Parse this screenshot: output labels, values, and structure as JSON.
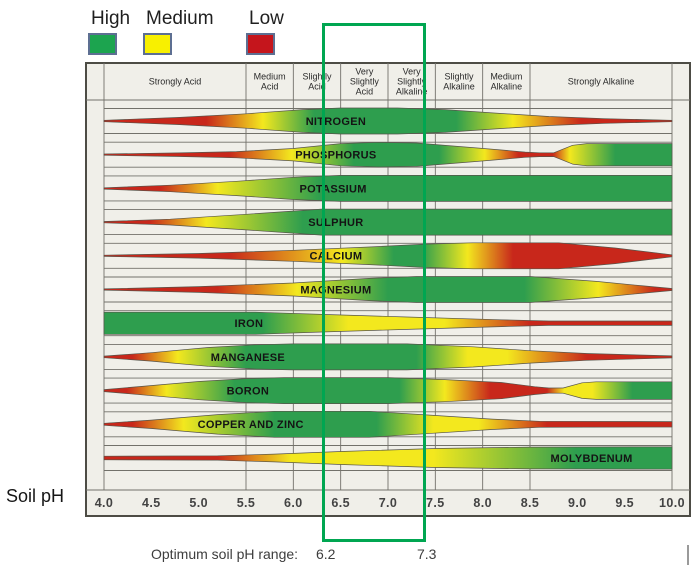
{
  "colors": {
    "red": "#c8271b",
    "yellow": "#f3e81e",
    "green": "#2e9e4e",
    "plot_bg": "#f0efe9",
    "grid": "#72716a",
    "box_border": "#4d4c45",
    "overlay_green": "#00a651",
    "band_outline": "#56544a",
    "label_ink": "#141414",
    "tick_ink": "#434343",
    "header_ink": "#2a2a2a"
  },
  "chart_data": {
    "type": "area",
    "title": "",
    "legend": {
      "items": [
        {
          "label": "High",
          "color": "#1ca44f",
          "color_key": "green"
        },
        {
          "label": "Medium",
          "color": "#f8f000",
          "color_key": "yellow"
        },
        {
          "label": "Low",
          "color": "#c5151c",
          "color_key": "red"
        }
      ]
    },
    "x_axis": {
      "label": "Soil pH",
      "min": 4.0,
      "max": 10.0,
      "tick_labels": [
        "4.0",
        "4.5",
        "5.0",
        "5.5",
        "6.0",
        "6.5",
        "7.0",
        "7.5",
        "8.0",
        "8.5",
        "9.0",
        "9.5",
        "10.0"
      ]
    },
    "optimum_range": {
      "label": "Optimum soil pH range:",
      "low_label": "6.2",
      "high_label": "7.3",
      "low": 6.2,
      "high": 7.3
    },
    "ph_categories": [
      {
        "label": "Strongly Acid",
        "lines": [
          "Strongly Acid"
        ],
        "from": 4.0,
        "to": 5.5
      },
      {
        "label": "Medium Acid",
        "lines": [
          "Medium",
          "Acid"
        ],
        "from": 5.5,
        "to": 6.0
      },
      {
        "label": "Slightly Acid",
        "lines": [
          "Slightly",
          "Acid"
        ],
        "from": 6.0,
        "to": 6.5
      },
      {
        "label": "Very Slightly Acid",
        "lines": [
          "Very",
          "Slightly",
          "Acid"
        ],
        "from": 6.5,
        "to": 7.0
      },
      {
        "label": "Very Slightly Alkaline",
        "lines": [
          "Very",
          "Slightly",
          "Alkaline"
        ],
        "from": 7.0,
        "to": 7.5
      },
      {
        "label": "Slightly Alkaline",
        "lines": [
          "Slightly",
          "Alkaline"
        ],
        "from": 7.5,
        "to": 8.0
      },
      {
        "label": "Medium Alkaline",
        "lines": [
          "Medium",
          "Alkaline"
        ],
        "from": 8.0,
        "to": 8.5
      },
      {
        "label": "Strongly Alkaline",
        "lines": [
          "Strongly Alkaline"
        ],
        "from": 8.5,
        "to": 10.0
      }
    ],
    "series": [
      {
        "name": "NITROGEN",
        "label_ph": 6.45,
        "availability_profile": [
          [
            4,
            0.05
          ],
          [
            4.8,
            0.28
          ],
          [
            5.5,
            0.55
          ],
          [
            6.1,
            0.88
          ],
          [
            6.5,
            1
          ],
          [
            7.1,
            1
          ],
          [
            7.6,
            0.88
          ],
          [
            8.1,
            0.62
          ],
          [
            8.7,
            0.35
          ],
          [
            9.3,
            0.18
          ],
          [
            10,
            0.05
          ]
        ],
        "color_stops": [
          [
            0,
            "red"
          ],
          [
            0.18,
            "red"
          ],
          [
            0.28,
            "yellow"
          ],
          [
            0.37,
            "green"
          ],
          [
            0.62,
            "green"
          ],
          [
            0.72,
            "yellow"
          ],
          [
            0.84,
            "red"
          ],
          [
            1,
            "red"
          ]
        ]
      },
      {
        "name": "PHOSPHORUS",
        "label_ph": 6.45,
        "availability_profile": [
          [
            4,
            0.05
          ],
          [
            4.8,
            0.14
          ],
          [
            5.4,
            0.24
          ],
          [
            6,
            0.48
          ],
          [
            6.5,
            0.85
          ],
          [
            6.9,
            0.95
          ],
          [
            7.3,
            0.9
          ],
          [
            7.8,
            0.6
          ],
          [
            8.2,
            0.36
          ],
          [
            8.45,
            0.2
          ],
          [
            8.6,
            0.15
          ],
          [
            8.75,
            0.15
          ],
          [
            8.95,
            0.72
          ],
          [
            9.1,
            0.85
          ],
          [
            10,
            0.85
          ]
        ],
        "color_stops": [
          [
            0,
            "red"
          ],
          [
            0.22,
            "red"
          ],
          [
            0.33,
            "yellow"
          ],
          [
            0.44,
            "green"
          ],
          [
            0.59,
            "green"
          ],
          [
            0.67,
            "yellow"
          ],
          [
            0.73,
            "red"
          ],
          [
            0.79,
            "red"
          ],
          [
            0.82,
            "yellow"
          ],
          [
            0.9,
            "green"
          ],
          [
            1,
            "green"
          ]
        ]
      },
      {
        "name": "POTASSIUM",
        "label_ph": 6.42,
        "availability_profile": [
          [
            4,
            0.05
          ],
          [
            4.7,
            0.25
          ],
          [
            5.4,
            0.55
          ],
          [
            6,
            0.85
          ],
          [
            6.5,
            1
          ],
          [
            10,
            1
          ]
        ],
        "color_stops": [
          [
            0,
            "red"
          ],
          [
            0.1,
            "red"
          ],
          [
            0.2,
            "yellow"
          ],
          [
            0.38,
            "green"
          ],
          [
            1,
            "green"
          ]
        ]
      },
      {
        "name": "SULPHUR",
        "label_ph": 6.45,
        "availability_profile": [
          [
            4,
            0.05
          ],
          [
            4.7,
            0.22
          ],
          [
            5.5,
            0.6
          ],
          [
            6.3,
            1
          ],
          [
            10,
            1
          ]
        ],
        "color_stops": [
          [
            0,
            "red"
          ],
          [
            0.08,
            "red"
          ],
          [
            0.18,
            "yellow"
          ],
          [
            0.35,
            "green"
          ],
          [
            1,
            "green"
          ]
        ]
      },
      {
        "name": "CALCIUM",
        "label_ph": 6.45,
        "availability_profile": [
          [
            4,
            0.05
          ],
          [
            5,
            0.18
          ],
          [
            6,
            0.42
          ],
          [
            6.8,
            0.68
          ],
          [
            7.4,
            0.9
          ],
          [
            7.9,
            1
          ],
          [
            8.8,
            1
          ],
          [
            9.4,
            0.6
          ],
          [
            10,
            0.08
          ]
        ],
        "color_stops": [
          [
            0,
            "red"
          ],
          [
            0.22,
            "red"
          ],
          [
            0.42,
            "yellow"
          ],
          [
            0.51,
            "green"
          ],
          [
            0.56,
            "green"
          ],
          [
            0.64,
            "yellow"
          ],
          [
            0.72,
            "red"
          ],
          [
            1,
            "red"
          ]
        ]
      },
      {
        "name": "MAGNESIUM",
        "label_ph": 6.45,
        "availability_profile": [
          [
            4,
            0.05
          ],
          [
            5,
            0.22
          ],
          [
            6,
            0.5
          ],
          [
            6.8,
            0.85
          ],
          [
            7.3,
            1
          ],
          [
            8.5,
            1
          ],
          [
            9.2,
            0.62
          ],
          [
            9.7,
            0.28
          ],
          [
            10,
            0.08
          ]
        ],
        "color_stops": [
          [
            0,
            "red"
          ],
          [
            0.2,
            "red"
          ],
          [
            0.34,
            "yellow"
          ],
          [
            0.5,
            "green"
          ],
          [
            0.74,
            "green"
          ],
          [
            0.87,
            "yellow"
          ],
          [
            0.97,
            "red"
          ],
          [
            1,
            "red"
          ]
        ]
      },
      {
        "name": "IRON",
        "label_ph": 5.53,
        "availability_profile": [
          [
            4,
            0.85
          ],
          [
            5.6,
            0.85
          ],
          [
            6.3,
            0.68
          ],
          [
            7.2,
            0.48
          ],
          [
            8.2,
            0.26
          ],
          [
            8.7,
            0.17
          ],
          [
            10,
            0.17
          ]
        ],
        "color_stops": [
          [
            0,
            "green"
          ],
          [
            0.28,
            "green"
          ],
          [
            0.43,
            "yellow"
          ],
          [
            0.6,
            "yellow"
          ],
          [
            0.75,
            "red"
          ],
          [
            1,
            "red"
          ]
        ]
      },
      {
        "name": "MANGANESE",
        "label_ph": 5.52,
        "availability_profile": [
          [
            4,
            0.06
          ],
          [
            4.5,
            0.32
          ],
          [
            5.1,
            0.72
          ],
          [
            5.6,
            0.93
          ],
          [
            6,
            1
          ],
          [
            7.2,
            1
          ],
          [
            7.9,
            0.78
          ],
          [
            8.5,
            0.48
          ],
          [
            9.1,
            0.26
          ],
          [
            10,
            0.08
          ]
        ],
        "color_stops": [
          [
            0,
            "red"
          ],
          [
            0.05,
            "red"
          ],
          [
            0.13,
            "yellow"
          ],
          [
            0.25,
            "green"
          ],
          [
            0.55,
            "green"
          ],
          [
            0.64,
            "yellow"
          ],
          [
            0.71,
            "yellow"
          ],
          [
            0.85,
            "red"
          ],
          [
            1,
            "red"
          ]
        ]
      },
      {
        "name": "BORON",
        "label_ph": 5.52,
        "availability_profile": [
          [
            4,
            0.08
          ],
          [
            4.4,
            0.32
          ],
          [
            5,
            0.7
          ],
          [
            5.5,
            0.92
          ],
          [
            5.9,
            1
          ],
          [
            7,
            1
          ],
          [
            7.6,
            0.85
          ],
          [
            8.2,
            0.62
          ],
          [
            8.55,
            0.3
          ],
          [
            8.7,
            0.2
          ],
          [
            8.85,
            0.2
          ],
          [
            9.05,
            0.6
          ],
          [
            9.2,
            0.68
          ],
          [
            10,
            0.68
          ]
        ],
        "color_stops": [
          [
            0,
            "red"
          ],
          [
            0.04,
            "red"
          ],
          [
            0.11,
            "yellow"
          ],
          [
            0.23,
            "green"
          ],
          [
            0.52,
            "green"
          ],
          [
            0.6,
            "yellow"
          ],
          [
            0.68,
            "red"
          ],
          [
            0.78,
            "red"
          ],
          [
            0.81,
            "yellow"
          ],
          [
            0.86,
            "yellow"
          ],
          [
            0.93,
            "green"
          ],
          [
            1,
            "green"
          ]
        ]
      },
      {
        "name": "COPPER AND ZINC",
        "label_ph": 5.55,
        "availability_profile": [
          [
            4,
            0.08
          ],
          [
            4.5,
            0.32
          ],
          [
            5.2,
            0.75
          ],
          [
            5.8,
            1
          ],
          [
            6.8,
            1
          ],
          [
            7.4,
            0.72
          ],
          [
            8.1,
            0.4
          ],
          [
            8.6,
            0.23
          ],
          [
            10,
            0.21
          ]
        ],
        "color_stops": [
          [
            0,
            "red"
          ],
          [
            0.05,
            "red"
          ],
          [
            0.14,
            "yellow"
          ],
          [
            0.3,
            "green"
          ],
          [
            0.48,
            "green"
          ],
          [
            0.58,
            "yellow"
          ],
          [
            0.66,
            "yellow"
          ],
          [
            0.78,
            "red"
          ],
          [
            1,
            "red"
          ]
        ]
      },
      {
        "name": "MOLYBDENUM",
        "label_ph": 9.15,
        "availability_profile": [
          [
            4,
            0.14
          ],
          [
            5.2,
            0.17
          ],
          [
            5.8,
            0.3
          ],
          [
            6.5,
            0.5
          ],
          [
            7.5,
            0.73
          ],
          [
            8.5,
            0.84
          ],
          [
            10,
            0.86
          ]
        ],
        "color_stops": [
          [
            0,
            "red"
          ],
          [
            0.2,
            "red"
          ],
          [
            0.33,
            "yellow"
          ],
          [
            0.58,
            "yellow"
          ],
          [
            0.83,
            "green"
          ],
          [
            1,
            "green"
          ]
        ]
      }
    ]
  }
}
